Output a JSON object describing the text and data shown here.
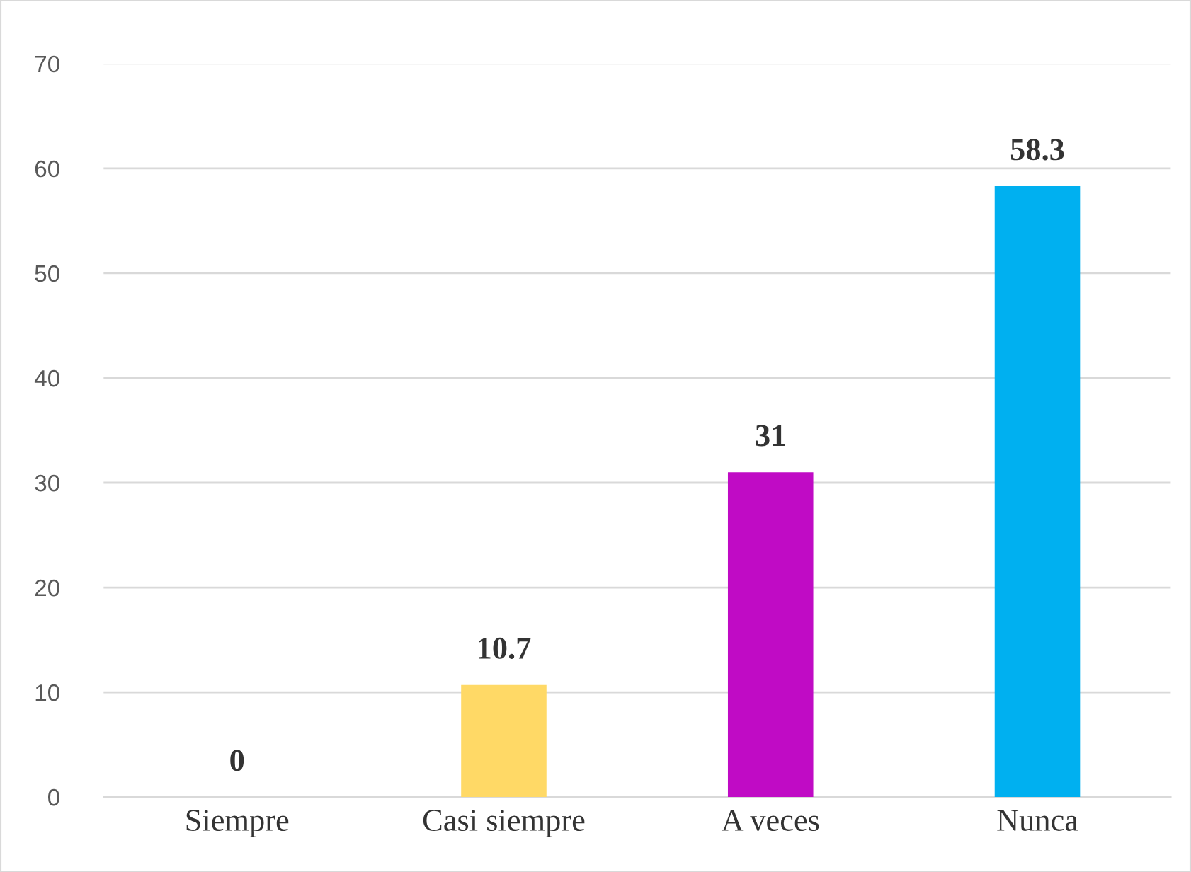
{
  "chart_data": {
    "type": "bar",
    "categories": [
      "Siempre",
      "Casi siempre",
      "A veces",
      "Nunca"
    ],
    "values": [
      0,
      10.7,
      31,
      58.3
    ],
    "colors": [
      "#ffd966",
      "#ffd966",
      "#c00bc5",
      "#00b0f0"
    ],
    "ylim": [
      0,
      70
    ],
    "yticks": [
      0,
      10,
      20,
      30,
      40,
      50,
      60,
      70
    ],
    "grid": "y",
    "data_labels": true
  }
}
